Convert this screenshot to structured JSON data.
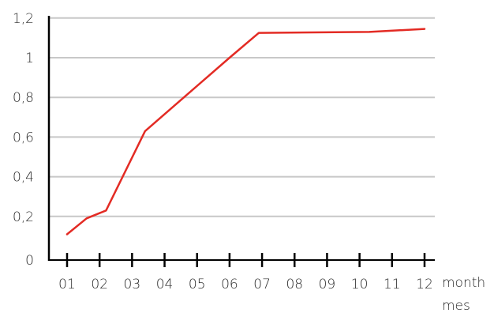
{
  "chart_data": {
    "type": "line",
    "title": "",
    "xlabel_primary": "month",
    "xlabel_secondary": "mes",
    "ylabel": "",
    "x_categories": [
      "01",
      "02",
      "03",
      "04",
      "05",
      "06",
      "07",
      "08",
      "09",
      "10",
      "11",
      "12"
    ],
    "y_ticks": [
      "0",
      "0,2",
      "0,4",
      "0,6",
      "0,8",
      "1",
      "1,2"
    ],
    "ylim": [
      0,
      1.2
    ],
    "grid": "horizontal",
    "line_color": "#e32b24",
    "grid_color": "#c8c8c8",
    "axis_color": "#000000",
    "series": [
      {
        "x": [
          1.0,
          1.6,
          2.2,
          3.4,
          6.0,
          6.9,
          10.3,
          12.0
        ],
        "y": [
          0.11,
          0.19,
          0.23,
          0.63,
          1.0,
          1.125,
          1.13,
          1.145
        ]
      }
    ]
  }
}
